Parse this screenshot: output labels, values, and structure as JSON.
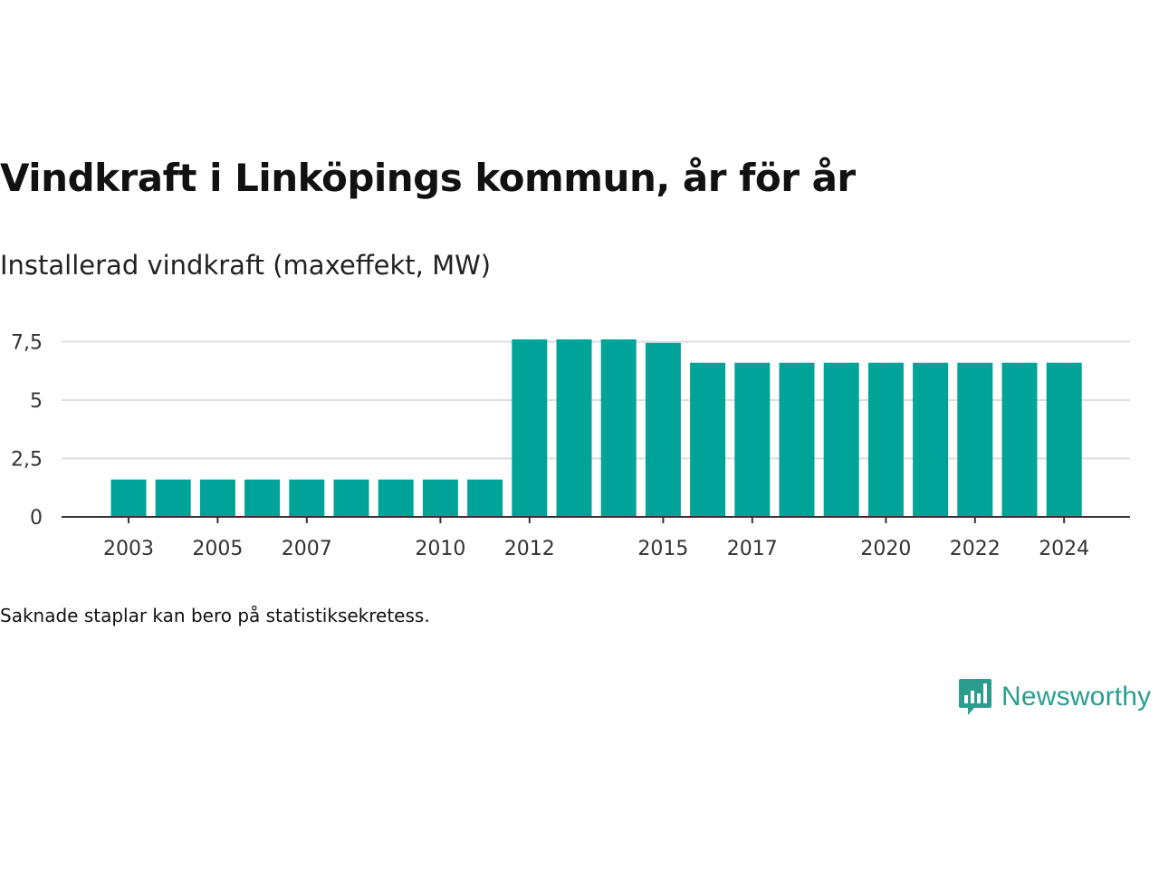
{
  "title": "Vindkraft i Linköpings kommun, år för år",
  "subtitle": "Installerad vindkraft (maxeffekt, MW)",
  "footnote": "Saknade staplar kan bero på statistiksekretess.",
  "brand": {
    "name": "Newsworthy",
    "icon": "newsworthy-logo-icon",
    "color": "#2a9d8f"
  },
  "chart_data": {
    "type": "bar",
    "color": "#00a398",
    "categories": [
      "2003",
      "2004",
      "2005",
      "2006",
      "2007",
      "2008",
      "2009",
      "2010",
      "2011",
      "2012",
      "2013",
      "2014",
      "2015",
      "2016",
      "2017",
      "2018",
      "2019",
      "2020",
      "2021",
      "2022",
      "2023",
      "2024"
    ],
    "values": [
      1.6,
      1.6,
      1.6,
      1.6,
      1.6,
      1.6,
      1.6,
      1.6,
      1.6,
      7.6,
      7.6,
      7.6,
      7.45,
      6.6,
      6.6,
      6.6,
      6.6,
      6.6,
      6.6,
      6.6,
      6.6,
      6.6
    ],
    "shown_x_ticks": [
      "2003",
      "2005",
      "2007",
      "2010",
      "2012",
      "2015",
      "2017",
      "2020",
      "2022",
      "2024"
    ],
    "y_ticks": [
      0,
      2.5,
      5,
      7.5
    ],
    "y_tick_labels": [
      "0",
      "2,5",
      "5",
      "7,5"
    ],
    "ylim": [
      0,
      8
    ],
    "grid": true,
    "xlabel": "",
    "ylabel": ""
  }
}
